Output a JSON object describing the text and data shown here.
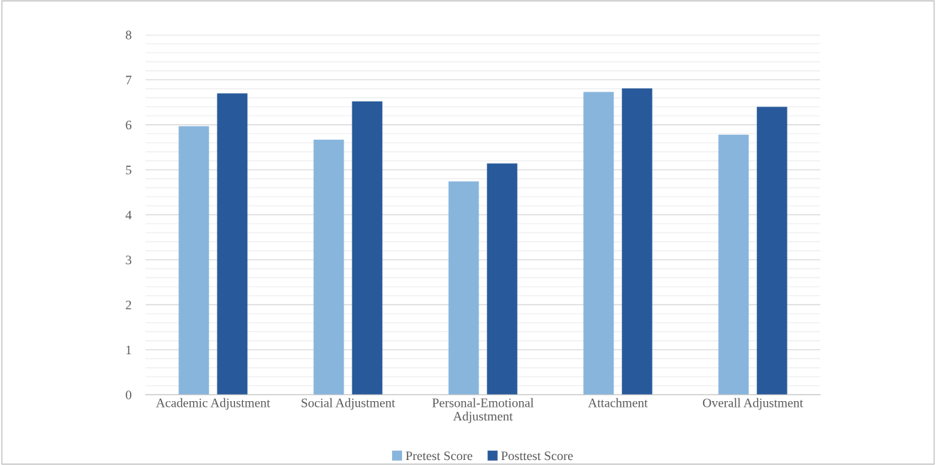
{
  "chart_data": {
    "type": "bar",
    "categories": [
      "Academic Adjustment",
      "Social Adjustment",
      "Personal-Emotional\nAdjustment",
      "Attachment",
      "Overall Adjustment"
    ],
    "series": [
      {
        "name": "Pretest Score",
        "color": "#88b5dc",
        "values": [
          5.97,
          5.67,
          4.74,
          6.73,
          5.78
        ]
      },
      {
        "name": "Posttest Score",
        "color": "#285a9b",
        "values": [
          6.7,
          6.52,
          5.14,
          6.81,
          6.4
        ]
      }
    ],
    "ylim": [
      0,
      8
    ],
    "yticks": [
      0,
      {
        "value": 0.2,
        "label": null
      },
      {
        "value": 0.4,
        "label": null
      },
      {
        "value": 0.6,
        "label": null
      },
      {
        "value": 0.8,
        "label": null
      },
      1,
      {
        "value": 1.2,
        "label": null
      },
      {
        "value": 1.4,
        "label": null
      },
      {
        "value": 1.6,
        "label": null
      },
      {
        "value": 1.8,
        "label": null
      },
      2,
      {
        "value": 2.2,
        "label": null
      },
      {
        "value": 2.4,
        "label": null
      },
      {
        "value": 2.6,
        "label": null
      },
      {
        "value": 2.8,
        "label": null
      },
      3,
      {
        "value": 3.2,
        "label": null
      },
      {
        "value": 3.4,
        "label": null
      },
      {
        "value": 3.6,
        "label": null
      },
      {
        "value": 3.8,
        "label": null
      },
      4,
      {
        "value": 4.2,
        "label": null
      },
      {
        "value": 4.4,
        "label": null
      },
      {
        "value": 4.6,
        "label": null
      },
      {
        "value": 4.8,
        "label": null
      },
      5,
      {
        "value": 5.2,
        "label": null
      },
      {
        "value": 5.4,
        "label": null
      },
      {
        "value": 5.6,
        "label": null
      },
      {
        "value": 5.8,
        "label": null
      },
      6,
      {
        "value": 6.2,
        "label": null
      },
      {
        "value": 6.4,
        "label": null
      },
      {
        "value": 6.6,
        "label": null
      },
      {
        "value": 6.8,
        "label": null
      },
      7,
      {
        "value": 7.2,
        "label": null
      },
      {
        "value": 7.4,
        "label": null
      },
      {
        "value": 7.6,
        "label": null
      },
      {
        "value": 7.8,
        "label": null
      },
      8
    ],
    "grid": "y",
    "legend": "bottom"
  }
}
